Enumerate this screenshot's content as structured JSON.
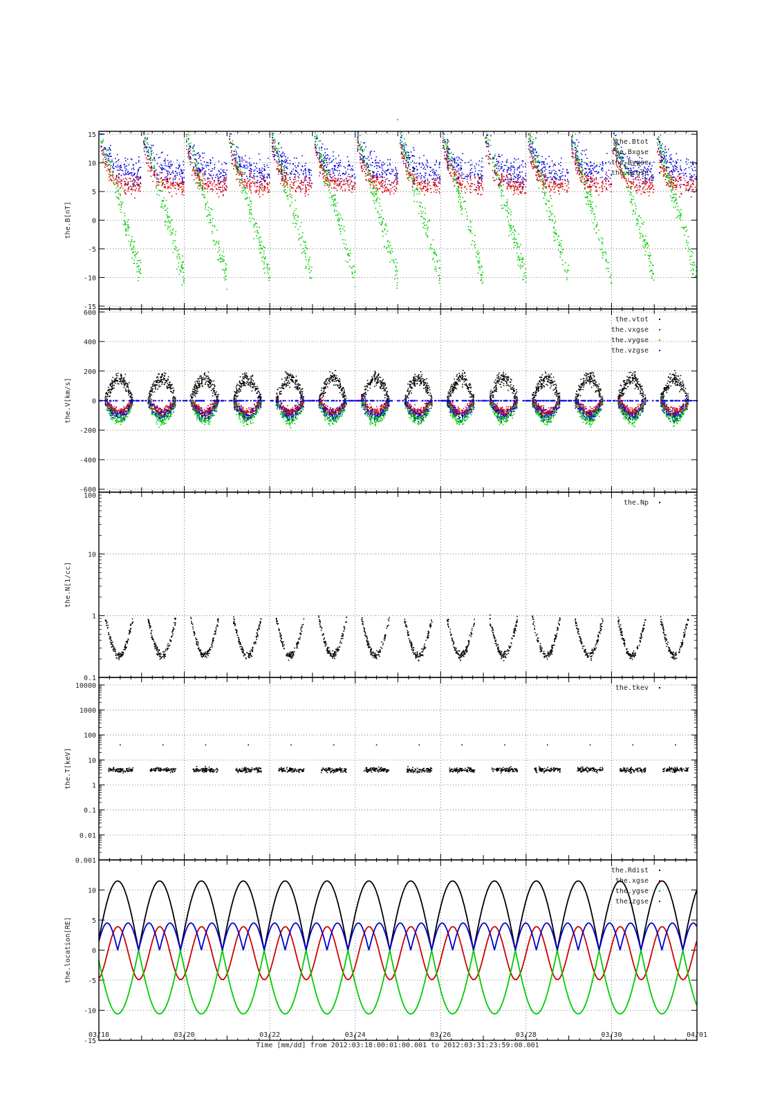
{
  "figure": {
    "top_label": "-",
    "xlabel": "Time [mm/dd]  from 2012:03:18:00:01:00.001  to  2012:03:31:23:59:00.001"
  },
  "chart_data": [
    {
      "type": "scatter",
      "ylabel": "the.B[nT]",
      "ylim": [
        -15.5,
        15.5
      ],
      "yticks": [
        15,
        10,
        5,
        0,
        -5,
        -10,
        -15
      ],
      "ytick_labels": [
        "15",
        "10",
        "5",
        "0",
        "-5",
        "-10",
        "-15"
      ],
      "legend": [
        "the.Btot",
        "the.Bxgse",
        "the.Bygse",
        "the.Bzgse"
      ],
      "legend_placement": "top-right",
      "series": [
        {
          "name": "the.Btot",
          "color": "#000000"
        },
        {
          "name": "the.Bxgse",
          "color": "#dd0000"
        },
        {
          "name": "the.Bygse",
          "color": "#00cc00"
        },
        {
          "name": "the.Bzgse",
          "color": "#0000dd"
        }
      ]
    },
    {
      "type": "scatter",
      "ylabel": "the.V[km/s]",
      "ylim": [
        -620,
        620
      ],
      "yticks": [
        600,
        400,
        200,
        0,
        -200,
        -400,
        -600
      ],
      "ytick_labels": [
        "600",
        "400",
        "200",
        "0",
        "-200",
        "-400",
        "-600"
      ],
      "legend": [
        "the.vtot",
        "the.vxgse",
        "the.vygse",
        "the.vzgse"
      ],
      "legend_placement": "top-right",
      "series": [
        {
          "name": "the.vtot",
          "color": "#000000"
        },
        {
          "name": "the.vxgse",
          "color": "#dd0000"
        },
        {
          "name": "the.vygse",
          "color": "#00cc00"
        },
        {
          "name": "the.vzgse",
          "color": "#0000dd"
        }
      ]
    },
    {
      "type": "scatter",
      "ylabel": "the.N[1/cc]",
      "yscale": "log",
      "ylim": [
        0.1,
        100
      ],
      "yticks": [
        100,
        10,
        1,
        0.1
      ],
      "ytick_labels": [
        "100",
        "10",
        "1",
        "0.1"
      ],
      "legend": [
        "the.Np"
      ],
      "legend_placement": "top-right",
      "series": [
        {
          "name": "the.Np",
          "color": "#000000"
        }
      ]
    },
    {
      "type": "scatter",
      "ylabel": "the.T[keV]",
      "yscale": "log",
      "ylim": [
        0.001,
        20000
      ],
      "yticks": [
        10000,
        1000,
        100,
        10,
        1,
        0.1,
        0.01,
        0.001
      ],
      "ytick_labels": [
        "10000",
        "1000",
        "100",
        "10",
        "1",
        "0.1",
        "0.01",
        "0.001"
      ],
      "legend": [
        "the.tkev"
      ],
      "legend_placement": "top-right",
      "series": [
        {
          "name": "the.tkev",
          "color": "#000000"
        }
      ]
    },
    {
      "type": "line",
      "ylabel": "the.location[RE]",
      "ylim": [
        -15,
        15
      ],
      "yticks": [
        10,
        5,
        0,
        -5,
        -10,
        -15
      ],
      "ytick_labels": [
        "10",
        "5",
        "0",
        "-5",
        "-10",
        "-15"
      ],
      "legend": [
        "the.Rdist",
        "the.xgse",
        "the.ygse",
        "the.zgse"
      ],
      "legend_placement": "top-right",
      "series": [
        {
          "name": "the.Rdist",
          "color": "#000000"
        },
        {
          "name": "the.xgse",
          "color": "#cc0000"
        },
        {
          "name": "the.ygse",
          "color": "#00cc00"
        },
        {
          "name": "the.zgse",
          "color": "#0000cc"
        }
      ]
    }
  ],
  "x_axis": {
    "range": [
      "03/18",
      "04/01"
    ],
    "tick_labels": [
      "03/18",
      "03/20",
      "03/22",
      "03/24",
      "03/26",
      "03/28",
      "03/30",
      "04/01"
    ],
    "major_days": [
      0,
      2,
      4,
      6,
      8,
      10,
      12,
      14
    ]
  }
}
